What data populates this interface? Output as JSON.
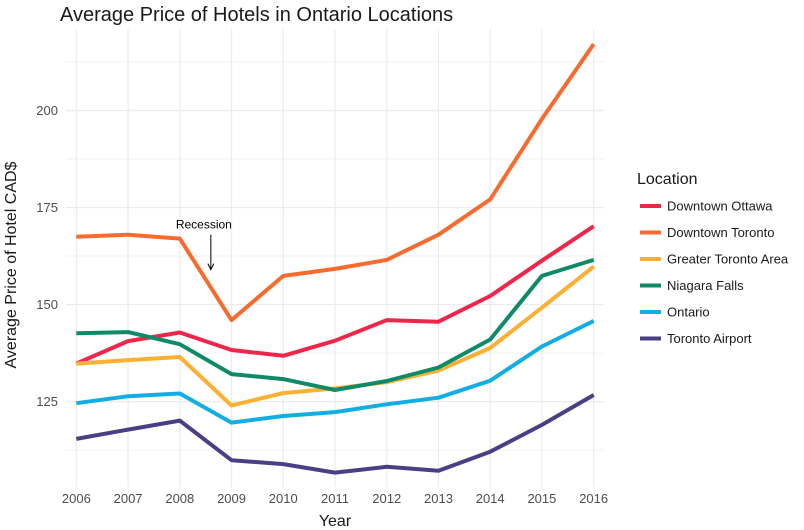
{
  "chart_data": {
    "type": "line",
    "title": "Average Price of Hotels in Ontario Locations",
    "xlabel": "Year",
    "ylabel": "Average Price of Hotel CAD$",
    "x": [
      2006,
      2007,
      2008,
      2009,
      2010,
      2011,
      2012,
      2013,
      2014,
      2015,
      2016
    ],
    "xlim": [
      2005.8,
      2016.2
    ],
    "ylim": [
      103,
      221
    ],
    "yticks": [
      125,
      150,
      175,
      200
    ],
    "grid": true,
    "legend_title": "Location",
    "legend_position": "right",
    "series": [
      {
        "name": "Downtown Ottawa",
        "color": "#F0254A",
        "values": [
          134.8,
          140.6,
          142.8,
          138.3,
          136.8,
          140.7,
          146.0,
          145.6,
          152.2,
          161.3,
          170.2
        ]
      },
      {
        "name": "Downtown Toronto",
        "color": "#F76B2E",
        "values": [
          167.5,
          168.0,
          167.0,
          146.0,
          157.4,
          159.2,
          161.5,
          168.0,
          177.1,
          197.8,
          217.1
        ]
      },
      {
        "name": "Greater Toronto Area",
        "color": "#FBB032",
        "values": [
          134.8,
          135.7,
          136.5,
          124.0,
          127.2,
          128.4,
          130.0,
          133.0,
          138.8,
          149.2,
          159.8
        ]
      },
      {
        "name": "Niagara Falls",
        "color": "#0E8A68",
        "values": [
          142.6,
          142.9,
          139.8,
          132.1,
          130.8,
          128.0,
          130.3,
          133.8,
          141.0,
          157.4,
          161.5
        ]
      },
      {
        "name": "Ontario",
        "color": "#12AEE3",
        "values": [
          124.6,
          126.4,
          127.1,
          119.6,
          121.3,
          122.3,
          124.3,
          126.0,
          130.4,
          139.2,
          145.8
        ]
      },
      {
        "name": "Toronto Airport",
        "color": "#4A3F85",
        "values": [
          115.4,
          117.8,
          120.1,
          109.9,
          108.9,
          106.7,
          108.2,
          107.2,
          112.1,
          119.0,
          126.7
        ]
      }
    ],
    "annotations": [
      {
        "text": "Recession",
        "x": 2008.6,
        "arrow_from_y": 168,
        "arrow_to_y": 159
      }
    ]
  }
}
